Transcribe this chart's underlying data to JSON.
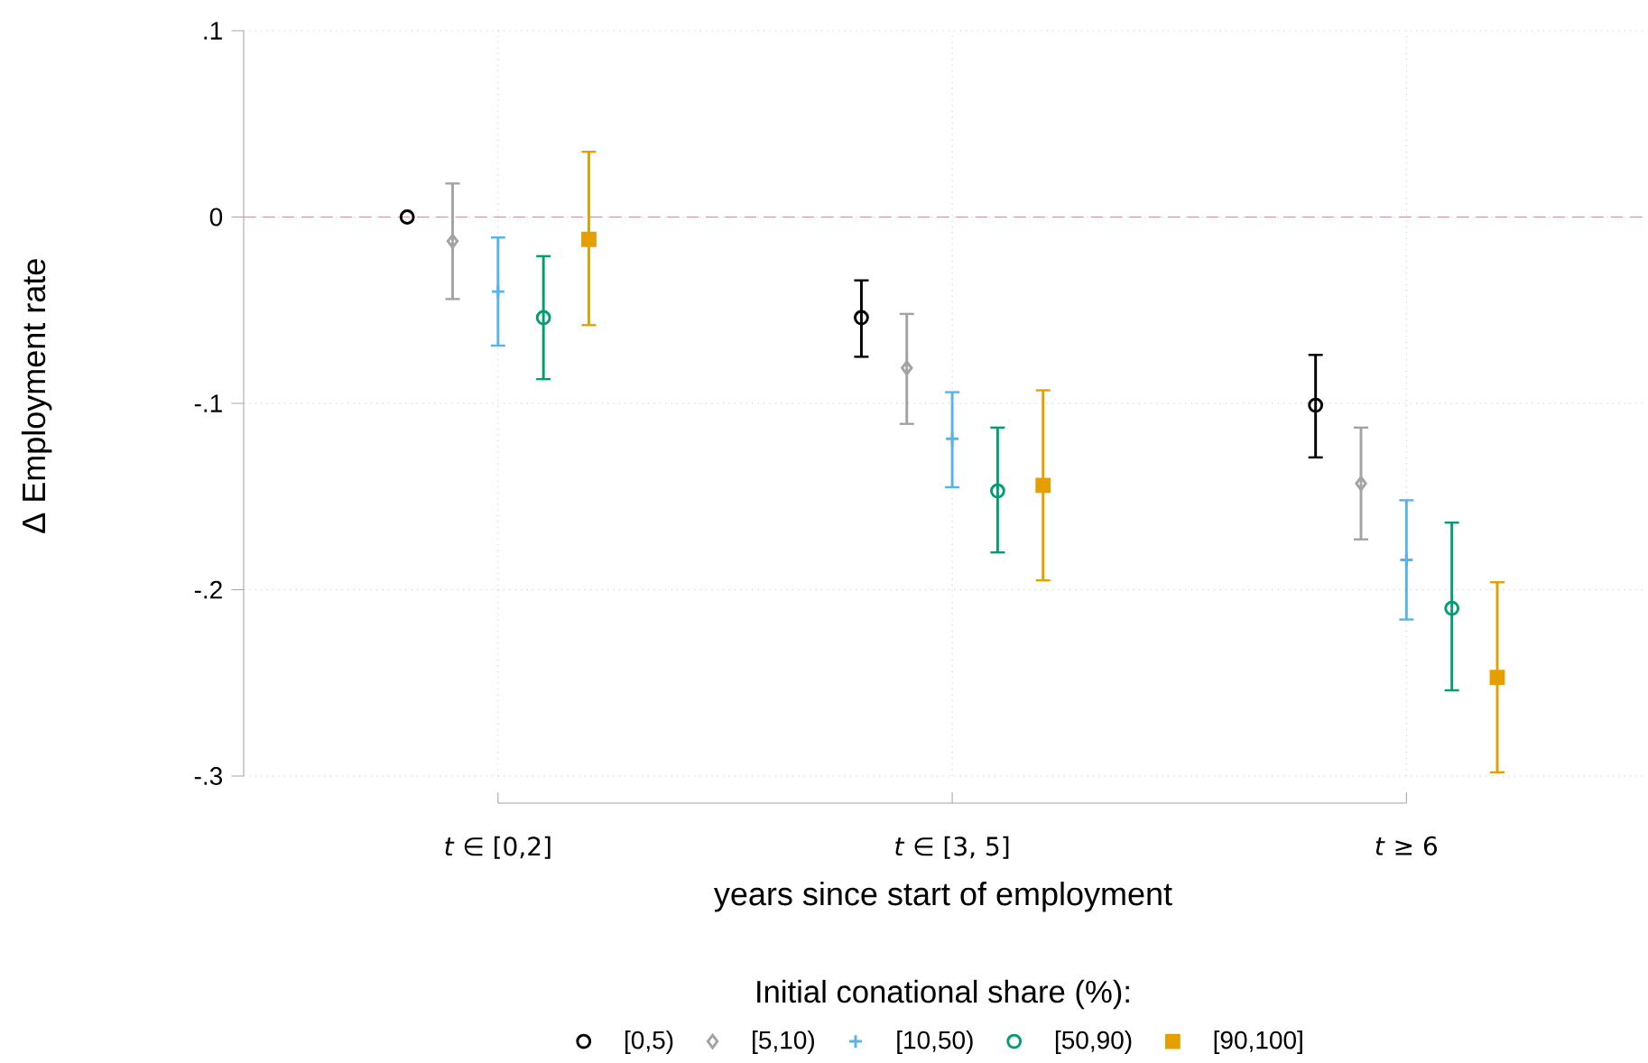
{
  "chart_data": {
    "type": "scatter",
    "xlabel": "years since start of employment",
    "ylabel": "Δ Employment rate",
    "legend_title": "Initial conational share (%):",
    "categories": [
      "*t* ∈ [0,2]",
      "*t* ∈ [3, 5]",
      "*t* ≥ 6"
    ],
    "ylim": [
      -0.3,
      0.1
    ],
    "yticks": [
      {
        "value": 0.1,
        "label": ".1"
      },
      0,
      {
        "value": -0.1,
        "label": "-.1"
      },
      {
        "value": -0.2,
        "label": "-.2"
      },
      {
        "value": -0.3,
        "label": "-.3"
      }
    ],
    "grid": true,
    "legend": "bottom",
    "ref_lines": [
      {
        "axis": "y",
        "value": 0,
        "color": "#cc8aa3",
        "line_style": "dashed"
      }
    ],
    "series": [
      {
        "name": "[0,5)",
        "color": "#000000",
        "marker": "circle",
        "values": [
          0,
          -0.054,
          -0.101
        ],
        "errors": [
          null,
          [
            -0.075,
            -0.034
          ],
          [
            -0.129,
            -0.074
          ]
        ]
      },
      {
        "name": "[5,10)",
        "color": "#a3a3a3",
        "marker": "diamond",
        "values": [
          -0.013,
          -0.081,
          -0.143
        ],
        "errors": [
          [
            -0.044,
            0.018
          ],
          [
            -0.111,
            -0.052
          ],
          [
            -0.173,
            -0.113
          ]
        ]
      },
      {
        "name": "[10,50)",
        "color": "#56b4e9",
        "marker": "cross",
        "values": [
          -0.04,
          -0.119,
          -0.184
        ],
        "errors": [
          [
            -0.069,
            -0.011
          ],
          [
            -0.145,
            -0.094
          ],
          [
            -0.216,
            -0.152
          ]
        ]
      },
      {
        "name": "[50,90)",
        "color": "#009e73",
        "marker": "circle",
        "values": [
          -0.054,
          -0.147,
          -0.21
        ],
        "errors": [
          [
            -0.087,
            -0.021
          ],
          [
            -0.18,
            -0.113
          ],
          [
            -0.254,
            -0.164
          ]
        ]
      },
      {
        "name": "[90,100]",
        "color": "#e69f00",
        "marker": "square",
        "values": [
          -0.012,
          -0.144,
          -0.247
        ],
        "errors": [
          [
            -0.058,
            0.035
          ],
          [
            -0.195,
            -0.093
          ],
          [
            -0.298,
            -0.196
          ]
        ]
      }
    ]
  }
}
